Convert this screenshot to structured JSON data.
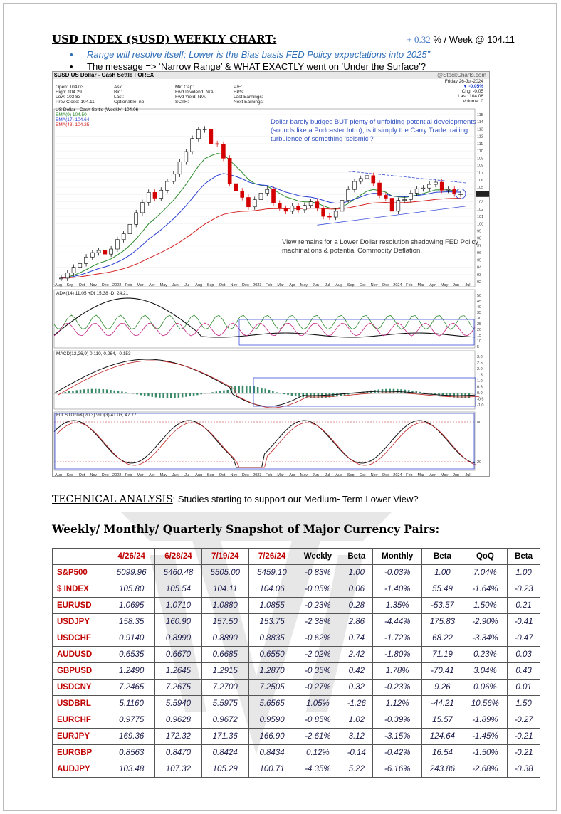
{
  "heading": {
    "title": "USD INDEX ($USD) WEEKLY CHART:",
    "perf_value": "+ 0.32",
    "perf_suffix": " % / Week @ 104.11"
  },
  "bullets": [
    "Range will resolve itself; Lower is the Bias basis FED Policy expectations into 2025”",
    "The message => ‘Narrow Range’ & WHAT EXACTLY went on ‘Under the Surface’?"
  ],
  "chart": {
    "symbol": "$USD US Dollar - Cash Settle FOREX",
    "brand": "@StockCharts.com",
    "quote_col1": [
      "Open: 104.03",
      "High: 104.29",
      "Low: 103.83",
      "Prev Close: 104.11"
    ],
    "quote_col2": [
      "Ask:",
      "Bid:",
      "Last:",
      "Optionable: no"
    ],
    "quote_col3": [
      "Mkt Cap:",
      "Fwd Dividend: N/A",
      "Fwd Yield: N/A",
      "SCTR:"
    ],
    "quote_col4": [
      "P/E:",
      "EPS:",
      "Last Earnings:",
      "Next Earnings:"
    ],
    "date": "Friday 26-Jul-2024",
    "change_pct": "▼ -0.05%",
    "change": "Chg: -0.05",
    "last": "Last: 104.06",
    "volume": "Volume: 0",
    "legend": [
      "US Dollar - Cash Settle (Weekly) 104.06",
      "EMA(9) 104.50",
      "EMA(17) 104.64",
      "EMA(43) 104.25"
    ],
    "note1": "Dollar barely budges BUT plenty of unfolding potential developments (sounds like a Podcaster Intro); is it simply the Carry Trade trailing turbulence of something 'seismic'?",
    "note2": "View remains for a Lower Dollar resolution shadowing FED Policy machinations & potential Commodity Deflation.",
    "adx_label": "ADX(14) 11.05 +DI 15.38 -DI 24.21",
    "macd_label": "MACD(12,26,9) 0.110, 0.264, -0.153",
    "sto_label": "Full STO %K(20,3) %D(3) 41.03, 47.77",
    "xticks": [
      "Aug",
      "Sep",
      "Oct",
      "Nov",
      "Dec",
      "2022",
      "Feb",
      "Mar",
      "Apr",
      "May",
      "Jun",
      "Jul",
      "Aug",
      "Sep",
      "Oct",
      "Nov",
      "Dec",
      "2023",
      "Feb",
      "Mar",
      "Apr",
      "May",
      "Jun",
      "Jul",
      "Aug",
      "Sep",
      "Oct",
      "Nov",
      "Dec",
      "2024",
      "Feb",
      "Mar",
      "Apr",
      "May",
      "Jun",
      "Jul"
    ],
    "yticks": [
      "115",
      "114",
      "113",
      "112",
      "111",
      "110",
      "109",
      "108",
      "107",
      "106",
      "105",
      "104",
      "103",
      "102",
      "101",
      "100",
      "99",
      "98",
      "97",
      "96",
      "95",
      "94",
      "93",
      "92"
    ],
    "adx_ticks": [
      "50",
      "45",
      "40",
      "35",
      "30",
      "25",
      "20",
      "15",
      "10",
      "5"
    ],
    "macd_ticks": [
      "3.0",
      "2.5",
      "2.0",
      "1.5",
      "1.0",
      "0.5",
      "0.0",
      "-0.5",
      "-1.0"
    ],
    "sto_ticks": [
      "80",
      "20"
    ],
    "colors": {
      "candle_up": "#000000",
      "candle_down": "#d40000",
      "ema9": "#2a8a2a",
      "ema17": "#2a3fd1",
      "ema43": "#d42020",
      "channel": "#3a4fd8"
    }
  },
  "chart_data": {
    "type": "line",
    "title": "US Dollar - Cash Settle (Weekly) 104.06",
    "ylim": [
      92,
      115
    ],
    "series": [
      {
        "name": "US Dollar - Cash Settle (Weekly)",
        "values": [
          92.5,
          93.2,
          94.0,
          94.5,
          95.4,
          96.0,
          96.3,
          95.8,
          96.5,
          97.8,
          98.6,
          99.9,
          101.5,
          102.9,
          104.3,
          103.5,
          104.6,
          105.8,
          106.8,
          108.5,
          109.9,
          111.7,
          112.9,
          113.0,
          111.0,
          110.9,
          109.0,
          105.5,
          104.5,
          103.6,
          102.3,
          103.3,
          104.2,
          104.7,
          102.8,
          102.1,
          101.7,
          102.4,
          101.9,
          102.5,
          103.0,
          102.1,
          101.0,
          100.9,
          101.7,
          103.2,
          104.7,
          105.8,
          106.2,
          106.6,
          105.6,
          103.9,
          103.5,
          101.7,
          103.2,
          103.3,
          104.2,
          104.8,
          104.9,
          105.4,
          105.7,
          104.6,
          104.7,
          104.1,
          104.1
        ]
      },
      {
        "name": "EMA(9)",
        "values": []
      },
      {
        "name": "EMA(17)",
        "values": []
      },
      {
        "name": "EMA(43)",
        "values": []
      }
    ]
  },
  "ta": {
    "label": "TECHNICAL ANALYSIS",
    "text": ":  Studies starting to support our Medium- Term Lower View?"
  },
  "snapshot_title": "Weekly/ Monthly/ Quarterly Snapshot of Major Currency Pairs:",
  "table": {
    "headers": [
      "",
      "4/26/24",
      "6/28/24",
      "7/19/24",
      "7/26/24",
      "Weekly",
      "Beta",
      "Monthly",
      "Beta",
      "QoQ",
      "Beta"
    ],
    "rows": [
      [
        "S&P500",
        "5099.96",
        "5460.48",
        "5505.00",
        "5459.10",
        "-0.83%",
        "1.00",
        "-0.03%",
        "1.00",
        "7.04%",
        "1.00"
      ],
      [
        "$ INDEX",
        "105.80",
        "105.54",
        "104.11",
        "104.06",
        "-0.05%",
        "0.06",
        "-1.40%",
        "55.49",
        "-1.64%",
        "-0.23"
      ],
      [
        "EURUSD",
        "1.0695",
        "1.0710",
        "1.0880",
        "1.0855",
        "-0.23%",
        "0.28",
        "1.35%",
        "-53.57",
        "1.50%",
        "0.21"
      ],
      [
        "USDJPY",
        "158.35",
        "160.90",
        "157.50",
        "153.75",
        "-2.38%",
        "2.86",
        "-4.44%",
        "175.83",
        "-2.90%",
        "-0.41"
      ],
      [
        "USDCHF",
        "0.9140",
        "0.8990",
        "0.8890",
        "0.8835",
        "-0.62%",
        "0.74",
        "-1.72%",
        "68.22",
        "-3.34%",
        "-0.47"
      ],
      [
        "AUDUSD",
        "0.6535",
        "0.6670",
        "0.6685",
        "0.6550",
        "-2.02%",
        "2.42",
        "-1.80%",
        "71.19",
        "0.23%",
        "0.03"
      ],
      [
        "GBPUSD",
        "1.2490",
        "1.2645",
        "1.2915",
        "1.2870",
        "-0.35%",
        "0.42",
        "1.78%",
        "-70.41",
        "3.04%",
        "0.43"
      ],
      [
        "USDCNY",
        "7.2465",
        "7.2675",
        "7.2700",
        "7.2505",
        "-0.27%",
        "0.32",
        "-0.23%",
        "9.26",
        "0.06%",
        "0.01"
      ],
      [
        "USDBRL",
        "5.1160",
        "5.5940",
        "5.5975",
        "5.6565",
        "1.05%",
        "-1.26",
        "1.12%",
        "-44.21",
        "10.56%",
        "1.50"
      ],
      [
        "EURCHF",
        "0.9775",
        "0.9628",
        "0.9672",
        "0.9590",
        "-0.85%",
        "1.02",
        "-0.39%",
        "15.57",
        "-1.89%",
        "-0.27"
      ],
      [
        "EURJPY",
        "169.36",
        "172.32",
        "171.36",
        "166.90",
        "-2.61%",
        "3.12",
        "-3.15%",
        "124.64",
        "-1.45%",
        "-0.21"
      ],
      [
        "EURGBP",
        "0.8563",
        "0.8470",
        "0.8424",
        "0.8434",
        "0.12%",
        "-0.14",
        "-0.42%",
        "16.54",
        "-1.50%",
        "-0.21"
      ],
      [
        "AUDJPY",
        "103.48",
        "107.32",
        "105.29",
        "100.71",
        "-4.35%",
        "5.22",
        "-6.16%",
        "243.86",
        "-2.68%",
        "-0.38"
      ]
    ]
  }
}
